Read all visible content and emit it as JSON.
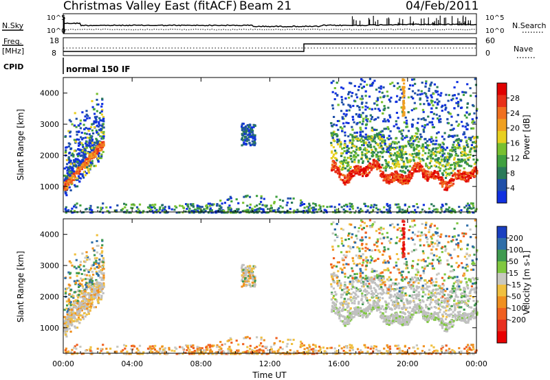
{
  "header": {
    "title": "Christmas Valley East (fitACF)",
    "beam": "Beam 21",
    "date": "04/Feb/2011"
  },
  "params": {
    "nsky_label": "N.Sky",
    "nsearch_label": "N.Search",
    "freq_label_line1": "Freq.",
    "freq_label_line2": "[MHz]",
    "nave_label": "Nave",
    "cpid_label": "CPID",
    "noise_ticks": [
      "10^5",
      "10^0"
    ],
    "freq_ticks": [
      "18",
      "8"
    ],
    "nave_ticks": [
      "60",
      "0"
    ],
    "cpid_text": "normal 150 IF"
  },
  "chart_data": [
    {
      "type": "heatmap",
      "name": "power",
      "ylabel": "Slant Range [km]",
      "xlabel": "",
      "x_ticks": [
        "00:00",
        "04:00",
        "08:00",
        "12:00",
        "16:00",
        "20:00",
        "00:00"
      ],
      "xlim_hours": [
        0,
        24
      ],
      "y_ticks": [
        1000,
        2000,
        3000,
        4000
      ],
      "ylim": [
        180,
        4500
      ],
      "colorbar": {
        "label": "Power [dB]",
        "ticks": [
          "4",
          "8",
          "12",
          "16",
          "20",
          "24",
          "28"
        ],
        "min": 0,
        "max": 31,
        "colors": [
          "#1030e0",
          "#2050a8",
          "#2a7a5a",
          "#40a040",
          "#78c030",
          "#e8d020",
          "#f0a020",
          "#f07020",
          "#e83018",
          "#e00000"
        ]
      }
    },
    {
      "type": "heatmap",
      "name": "velocity",
      "ylabel": "Slant Range [km]",
      "xlabel": "Time UT",
      "x_ticks": [
        "00:00",
        "04:00",
        "08:00",
        "12:00",
        "16:00",
        "20:00",
        "00:00"
      ],
      "xlim_hours": [
        0,
        24
      ],
      "y_ticks": [
        1000,
        2000,
        3000,
        4000
      ],
      "ylim": [
        180,
        4500
      ],
      "colorbar": {
        "label": "Velocity [m s-1]",
        "ticks": [
          "200",
          "100",
          "50",
          "15",
          "-15",
          "-50",
          "-100",
          "-200"
        ],
        "colors": [
          "#1a3fc0",
          "#2f6ea8",
          "#3f9a50",
          "#80c840",
          "#c8c8c0",
          "#f0c040",
          "#f09020",
          "#f06020",
          "#e83020",
          "#e80000"
        ]
      }
    }
  ],
  "colors": {
    "ground_scatter": "#c0c0c0"
  }
}
